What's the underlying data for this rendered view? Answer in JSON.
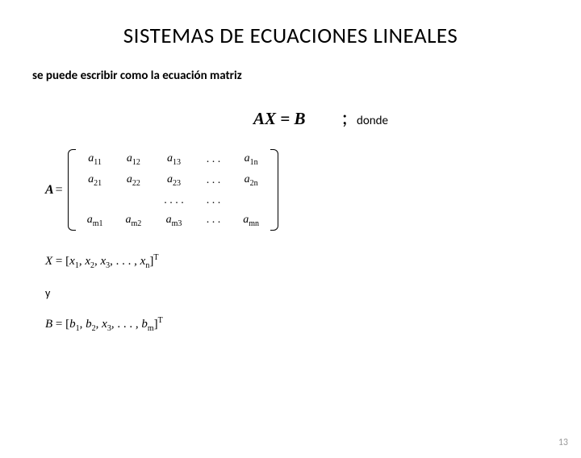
{
  "title": "SISTEMAS DE ECUACIONES LINEALES",
  "subtitle": "se puede escribir como la ecuación matriz",
  "equation": "AX = B",
  "semicolon": ";",
  "donde": "donde",
  "Aeq": "A",
  "eqsign": "=",
  "matrix": {
    "rows": [
      [
        {
          "base": "a",
          "sub": "11"
        },
        {
          "base": "a",
          "sub": "12"
        },
        {
          "base": "a",
          "sub": "13"
        },
        {
          "dots": ". . ."
        },
        {
          "base": "a",
          "sub": "1n"
        }
      ],
      [
        {
          "base": "a",
          "sub": "21"
        },
        {
          "base": "a",
          "sub": "22"
        },
        {
          "base": "a",
          "sub": "23"
        },
        {
          "dots": ". . ."
        },
        {
          "base": "a",
          "sub": "2n"
        }
      ],
      [
        {
          "dots": ""
        },
        {
          "dots": ""
        },
        {
          "dots": ". . . ."
        },
        {
          "dots": ". . ."
        },
        {
          "dots": ""
        }
      ],
      [
        {
          "base": "a",
          "sub": "m1"
        },
        {
          "base": "a",
          "sub": "m2"
        },
        {
          "base": "a",
          "sub": "m3"
        },
        {
          "dots": ". . ."
        },
        {
          "base": "a",
          "sub": "mn"
        }
      ]
    ]
  },
  "Xline": {
    "lhs": "X",
    "open": " = [",
    "items": [
      {
        "b": "x",
        "s": "1"
      },
      {
        "b": "x",
        "s": "2"
      },
      {
        "b": "x",
        "s": "3"
      }
    ],
    "dots": ", . . . , ",
    "last": {
      "b": "x",
      "s": "n"
    },
    "close": "]",
    "sup": "T"
  },
  "y": "y",
  "Bline": {
    "lhs": "B",
    "open": " = [",
    "items": [
      {
        "b": "b",
        "s": "1"
      },
      {
        "b": "b",
        "s": "2"
      },
      {
        "b": "x",
        "s": "3"
      }
    ],
    "dots": ", . . . , ",
    "last": {
      "b": "b",
      "s": "m"
    },
    "close": "]",
    "sup": "T"
  },
  "pagenum": "13",
  "colors": {
    "text": "#000000",
    "bg": "#ffffff",
    "pagenum": "#9a9a9a"
  }
}
